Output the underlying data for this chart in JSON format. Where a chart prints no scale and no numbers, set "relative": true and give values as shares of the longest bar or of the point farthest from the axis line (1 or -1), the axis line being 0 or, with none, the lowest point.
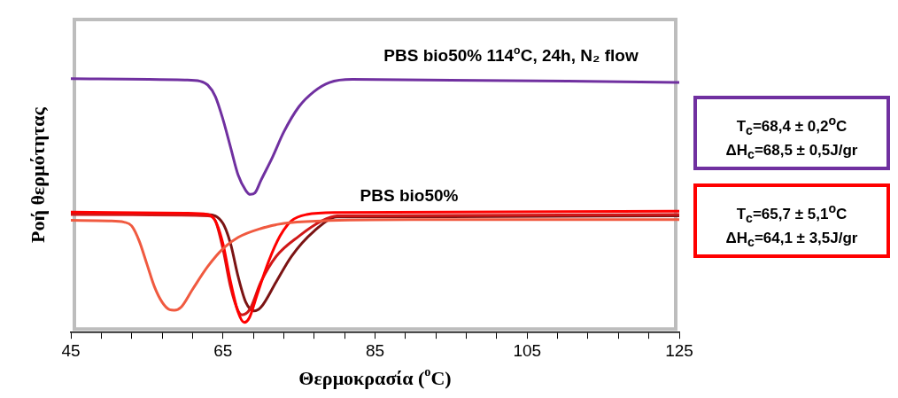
{
  "chart_data": {
    "type": "line",
    "relative": true,
    "xlabel": "Θερμοκρασία ($^{o}$C)",
    "ylabel": "Ροή θερμότητας",
    "xlim": [
      45,
      125
    ],
    "xticks": [
      45,
      {
        "value": 49,
        "label": null
      },
      {
        "value": 53,
        "label": null
      },
      {
        "value": 57,
        "label": null
      },
      {
        "value": 61,
        "label": null
      },
      65,
      {
        "value": 69,
        "label": null
      },
      {
        "value": 73,
        "label": null
      },
      {
        "value": 77,
        "label": null
      },
      {
        "value": 81,
        "label": null
      },
      85,
      {
        "value": 89,
        "label": null
      },
      {
        "value": 93,
        "label": null
      },
      {
        "value": 97,
        "label": null
      },
      {
        "value": 101,
        "label": null
      },
      105,
      {
        "value": 109,
        "label": null
      },
      {
        "value": 113,
        "label": null
      },
      {
        "value": 117,
        "label": null
      },
      {
        "value": 121,
        "label": null
      },
      125
    ],
    "grid": false,
    "legend": false,
    "marker": "none",
    "line_style": "solid",
    "series": [
      {
        "color": "#7030a0",
        "x": [
          45,
          60,
          62,
          63,
          64,
          65,
          66,
          67,
          68,
          68.6,
          69.2,
          70,
          71.5,
          73,
          75,
          77,
          79,
          82,
          125
        ],
        "values": [
          1.0,
          0.995,
          0.99,
          0.975,
          0.93,
          0.84,
          0.73,
          0.62,
          0.56,
          0.544,
          0.55,
          0.6,
          0.69,
          0.79,
          0.89,
          0.95,
          0.985,
          0.997,
          0.985
        ]
      },
      {
        "color": "#f05a40",
        "x": [
          45,
          50,
          52,
          53,
          54,
          55,
          56,
          57,
          58,
          58.6,
          59.5,
          61,
          63,
          65,
          67,
          70,
          73,
          78,
          90,
          125
        ],
        "values": [
          0.442,
          0.44,
          0.435,
          0.42,
          0.36,
          0.27,
          0.18,
          0.12,
          0.09,
          0.088,
          0.1,
          0.17,
          0.26,
          0.33,
          0.375,
          0.41,
          0.43,
          0.44,
          0.445,
          0.445
        ]
      },
      {
        "color": "#ff0000",
        "x": [
          45,
          60,
          63,
          64,
          65,
          66,
          67,
          67.8,
          68.5,
          69.5,
          71,
          72.5,
          74,
          76,
          80,
          125
        ],
        "values": [
          0.475,
          0.47,
          0.465,
          0.44,
          0.35,
          0.2,
          0.08,
          0.04,
          0.06,
          0.15,
          0.28,
          0.38,
          0.44,
          0.465,
          0.473,
          0.478
        ]
      },
      {
        "color": "#d01818",
        "x": [
          45,
          63,
          64,
          65,
          66,
          67,
          67.5,
          68.5,
          70,
          72,
          75,
          78,
          80,
          125
        ],
        "values": [
          0.465,
          0.46,
          0.44,
          0.33,
          0.18,
          0.085,
          0.07,
          0.09,
          0.2,
          0.3,
          0.38,
          0.44,
          0.46,
          0.465
        ]
      },
      {
        "color": "#7b1414",
        "x": [
          45,
          63,
          65,
          66,
          67,
          68,
          69.1,
          70,
          72,
          74,
          77,
          80,
          125
        ],
        "values": [
          0.47,
          0.465,
          0.43,
          0.35,
          0.22,
          0.12,
          0.085,
          0.1,
          0.2,
          0.3,
          0.4,
          0.455,
          0.46
        ]
      }
    ],
    "annotations": [
      "PBS bio50% 114$^{o}$C, 24h, N₂ flow",
      "PBS bio50%",
      "T$_{c}$=68,4 ± 0,2$^{o}$C\nΔH$_{c}$=68,5 ± 0,5J/gr",
      "T$_{c}$=65,7 ± 5,1$^{o}$C\nΔH$_{c}$=64,1 ± 3,5J/gr"
    ]
  }
}
